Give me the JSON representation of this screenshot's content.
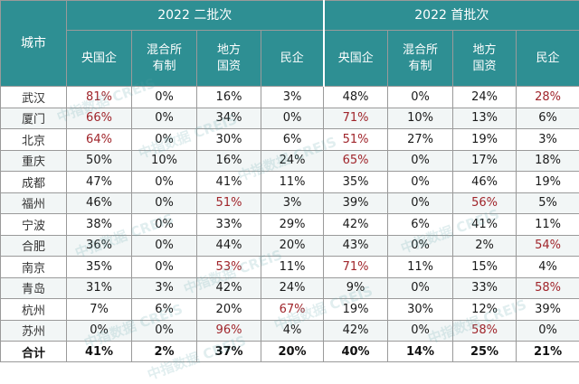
{
  "table": {
    "city_header": "城市",
    "groups": [
      {
        "label": "2022 二批次",
        "columns": [
          {
            "l1": "央国企",
            "l2": ""
          },
          {
            "l1": "混合所",
            "l2": "有制"
          },
          {
            "l1": "地方",
            "l2": "国资"
          },
          {
            "l1": "民企",
            "l2": ""
          }
        ]
      },
      {
        "label": "2022 首批次",
        "columns": [
          {
            "l1": "央国企",
            "l2": ""
          },
          {
            "l1": "混合所",
            "l2": "有制"
          },
          {
            "l1": "地方",
            "l2": "国资"
          },
          {
            "l1": "民企",
            "l2": ""
          }
        ]
      }
    ],
    "rows": [
      {
        "city": "武汉",
        "values": [
          "81%",
          "0%",
          "16%",
          "3%",
          "48%",
          "0%",
          "24%",
          "28%"
        ],
        "highlight": [
          0,
          7
        ]
      },
      {
        "city": "厦门",
        "values": [
          "66%",
          "0%",
          "34%",
          "0%",
          "71%",
          "10%",
          "13%",
          "6%"
        ],
        "highlight": [
          0,
          4
        ]
      },
      {
        "city": "北京",
        "values": [
          "64%",
          "0%",
          "30%",
          "6%",
          "51%",
          "27%",
          "19%",
          "3%"
        ],
        "highlight": [
          0,
          4
        ]
      },
      {
        "city": "重庆",
        "values": [
          "50%",
          "10%",
          "16%",
          "24%",
          "65%",
          "0%",
          "17%",
          "18%"
        ],
        "highlight": [
          4
        ]
      },
      {
        "city": "成都",
        "values": [
          "47%",
          "0%",
          "41%",
          "11%",
          "35%",
          "0%",
          "46%",
          "19%"
        ],
        "highlight": []
      },
      {
        "city": "福州",
        "values": [
          "46%",
          "0%",
          "51%",
          "3%",
          "39%",
          "0%",
          "56%",
          "5%"
        ],
        "highlight": [
          2,
          6
        ]
      },
      {
        "city": "宁波",
        "values": [
          "38%",
          "0%",
          "33%",
          "29%",
          "42%",
          "6%",
          "41%",
          "11%"
        ],
        "highlight": []
      },
      {
        "city": "合肥",
        "values": [
          "36%",
          "0%",
          "44%",
          "20%",
          "43%",
          "0%",
          "2%",
          "54%"
        ],
        "highlight": [
          7
        ]
      },
      {
        "city": "南京",
        "values": [
          "35%",
          "0%",
          "53%",
          "11%",
          "71%",
          "11%",
          "15%",
          "4%"
        ],
        "highlight": [
          2,
          4
        ]
      },
      {
        "city": "青岛",
        "values": [
          "31%",
          "3%",
          "42%",
          "24%",
          "9%",
          "0%",
          "33%",
          "58%"
        ],
        "highlight": [
          7
        ]
      },
      {
        "city": "杭州",
        "values": [
          "7%",
          "6%",
          "20%",
          "67%",
          "19%",
          "30%",
          "12%",
          "39%"
        ],
        "highlight": [
          3
        ]
      },
      {
        "city": "苏州",
        "values": [
          "0%",
          "0%",
          "96%",
          "4%",
          "42%",
          "0%",
          "58%",
          "0%"
        ],
        "highlight": [
          2,
          6
        ]
      }
    ],
    "total": {
      "label": "合计",
      "values": [
        "41%",
        "2%",
        "37%",
        "20%",
        "40%",
        "14%",
        "25%",
        "21%"
      ]
    }
  },
  "watermark": "中指数据 CREIS",
  "colors": {
    "header_bg": "#2e8f93",
    "highlight": "#a0252b",
    "alt_row": "#f2f6f6"
  }
}
